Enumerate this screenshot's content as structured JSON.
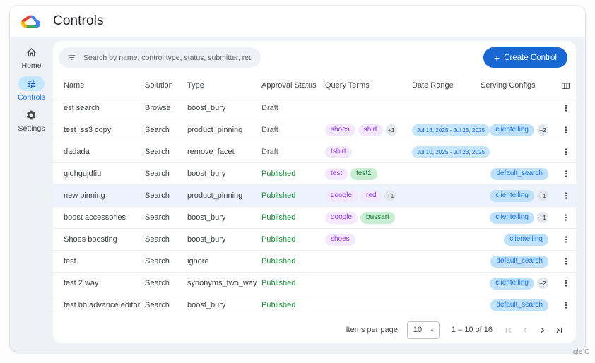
{
  "app": {
    "title": "Controls",
    "watermark": "gle C"
  },
  "sidebar": {
    "items": [
      {
        "id": "home",
        "label": "Home",
        "icon": "home-icon",
        "active": false
      },
      {
        "id": "controls",
        "label": "Controls",
        "icon": "tune-icon",
        "active": true
      },
      {
        "id": "settings",
        "label": "Settings",
        "icon": "gear-icon",
        "active": false
      }
    ]
  },
  "toolbar": {
    "search_placeholder": "Search by name, control type, status, submitter, requested on",
    "plus": "+",
    "create_button": "Create Control"
  },
  "table": {
    "columns": [
      "Name",
      "Solution",
      "Type",
      "Approval Status",
      "Query Terms",
      "Date Range",
      "Serving Configs"
    ],
    "rows": [
      {
        "name": "est search",
        "solution": "Browse",
        "type": "boost_bury",
        "status": "Draft",
        "terms": [],
        "terms_more": null,
        "date_range": null,
        "configs": [],
        "configs_more": null,
        "highlight": false
      },
      {
        "name": "test_ss3 copy",
        "solution": "Search",
        "type": "product_pinning",
        "status": "Draft",
        "terms": [
          {
            "text": "shoes",
            "color": "purple"
          },
          {
            "text": "shirt",
            "color": "purple"
          }
        ],
        "terms_more": "+1",
        "date_range": "Jul 18, 2025 - Jul 23, 2025",
        "configs": [
          "clientelling"
        ],
        "configs_more": "+2",
        "highlight": false
      },
      {
        "name": "dadada",
        "solution": "Search",
        "type": "remove_facet",
        "status": "Draft",
        "terms": [
          {
            "text": "tshirt",
            "color": "purple"
          }
        ],
        "terms_more": null,
        "date_range": "Jul 10, 2025 - Jul 23, 2025",
        "configs": [],
        "configs_more": null,
        "highlight": false
      },
      {
        "name": "giohgujdfiu",
        "solution": "Search",
        "type": "boost_bury",
        "status": "Published",
        "terms": [
          {
            "text": "test",
            "color": "purple"
          },
          {
            "text": "test1",
            "color": "green"
          }
        ],
        "terms_more": null,
        "date_range": null,
        "configs": [
          "default_search"
        ],
        "configs_more": null,
        "highlight": false
      },
      {
        "name": "new pinning",
        "solution": "Search",
        "type": "product_pinning",
        "status": "Published",
        "terms": [
          {
            "text": "google",
            "color": "purple"
          },
          {
            "text": "red",
            "color": "purple"
          }
        ],
        "terms_more": "+1",
        "date_range": null,
        "configs": [
          "clientelling"
        ],
        "configs_more": "+1",
        "highlight": true
      },
      {
        "name": "boost accessories",
        "solution": "Search",
        "type": "boost_bury",
        "status": "Published",
        "terms": [
          {
            "text": "google",
            "color": "purple"
          },
          {
            "text": "bussart",
            "color": "green"
          }
        ],
        "terms_more": null,
        "date_range": null,
        "configs": [
          "clientelling"
        ],
        "configs_more": "+1",
        "highlight": false
      },
      {
        "name": "Shoes boosting",
        "solution": "Search",
        "type": "boost_bury",
        "status": "Published",
        "terms": [
          {
            "text": "shoes",
            "color": "purple"
          }
        ],
        "terms_more": null,
        "date_range": null,
        "configs": [
          "clientelling"
        ],
        "configs_more": null,
        "highlight": false
      },
      {
        "name": "test",
        "solution": "Search",
        "type": "ignore",
        "status": "Published",
        "terms": [],
        "terms_more": null,
        "date_range": null,
        "configs": [
          "default_search"
        ],
        "configs_more": null,
        "highlight": false
      },
      {
        "name": "test 2 way",
        "solution": "Search",
        "type": "synonyms_two_way",
        "status": "Published",
        "terms": [],
        "terms_more": null,
        "date_range": null,
        "configs": [
          "clientelling"
        ],
        "configs_more": "+2",
        "highlight": false
      },
      {
        "name": "test bb advance editor",
        "solution": "Search",
        "type": "boost_bury",
        "status": "Published",
        "terms": [],
        "terms_more": null,
        "date_range": null,
        "configs": [
          "default_search"
        ],
        "configs_more": null,
        "highlight": false
      }
    ]
  },
  "pagination": {
    "items_per_page_label": "Items per page:",
    "page_size": "10",
    "range_label": "1 – 10 of 16"
  },
  "colors": {
    "accent": "#1967d2",
    "published": "#1e8e3e",
    "draft": "#5f6368",
    "pill_purple_bg": "#f4e8fd",
    "pill_purple_text": "#9334e6",
    "pill_green_bg": "#c8eed3",
    "pill_green_text": "#137333",
    "pill_blue_bg": "#bfe1fb",
    "pill_blue_text": "#1a73e8",
    "row_highlight": "#ecf3fd",
    "sidebar_active_bg": "#c2e7ff"
  }
}
